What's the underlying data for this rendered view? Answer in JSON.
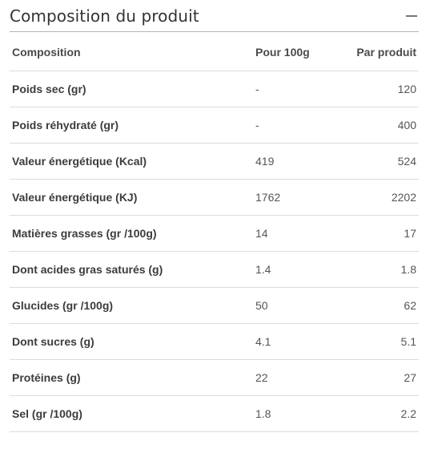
{
  "section": {
    "title": "Composition du produit",
    "collapse_icon": "minus-icon"
  },
  "table": {
    "headers": [
      "Composition",
      "Pour 100g",
      "Par produit"
    ],
    "rows": [
      {
        "label": "Poids sec (gr)",
        "per100": "-",
        "perProduct": "120"
      },
      {
        "label": "Poids réhydraté (gr)",
        "per100": "-",
        "perProduct": "400"
      },
      {
        "label": "Valeur énergétique (Kcal)",
        "per100": "419",
        "perProduct": "524"
      },
      {
        "label": "Valeur énergétique (KJ)",
        "per100": "1762",
        "perProduct": "2202"
      },
      {
        "label": "Matières grasses (gr /100g)",
        "per100": "14",
        "perProduct": "17"
      },
      {
        "label": "Dont acides gras saturés (g)",
        "per100": "1.4",
        "perProduct": "1.8"
      },
      {
        "label": "Glucides (gr /100g)",
        "per100": "50",
        "perProduct": "62"
      },
      {
        "label": "Dont sucres (g)",
        "per100": "4.1",
        "perProduct": "5.1"
      },
      {
        "label": "Protéines (g)",
        "per100": "22",
        "perProduct": "27"
      },
      {
        "label": "Sel (gr /100g)",
        "per100": "1.8",
        "perProduct": "2.2"
      }
    ]
  }
}
